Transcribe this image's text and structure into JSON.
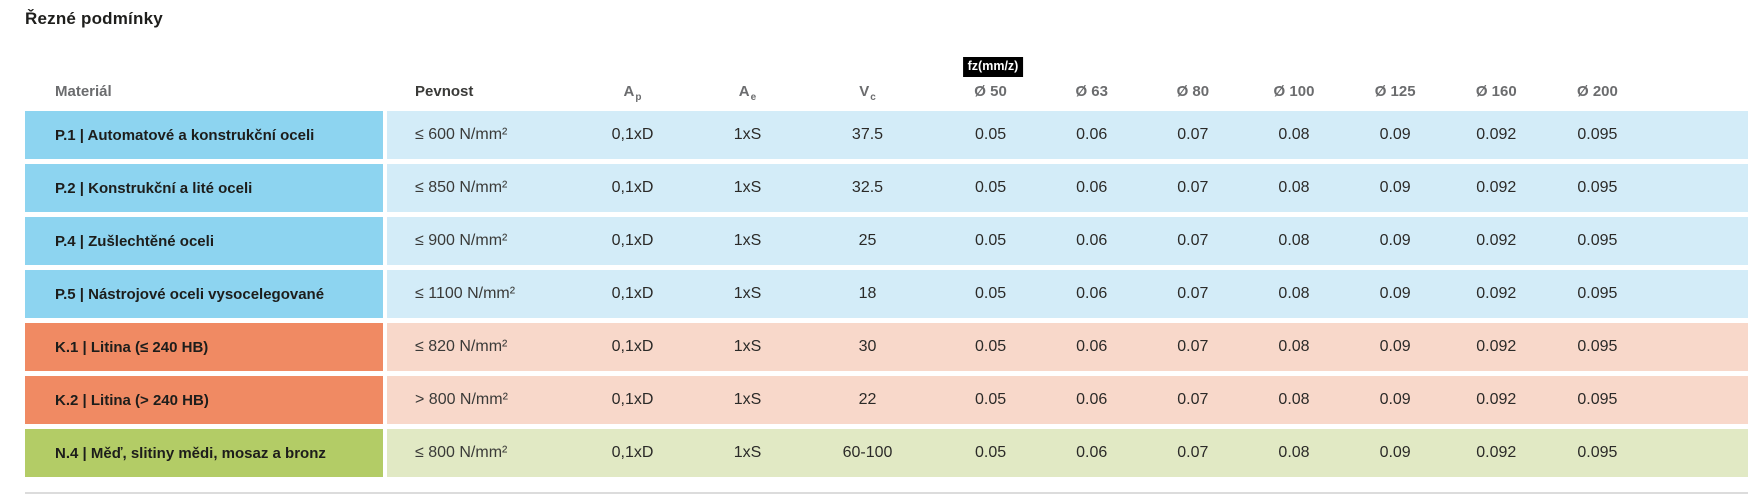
{
  "title": "Řezné podmínky",
  "colors": {
    "steel_strong": "#8dd4f0",
    "steel_light": "#d3ecf8",
    "cast_strong": "#f08a63",
    "cast_light": "#f8d8ca",
    "nonferrous_strong": "#b3cc66",
    "nonferrous_light": "#e1e9c4",
    "header_text": "#6b6c6e",
    "dark_text": "#1e1e1c",
    "badge_bg": "#000000",
    "badge_text": "#ffffff"
  },
  "table": {
    "fz_badge": "fz(mm/z)",
    "headers": {
      "material": "Materiál",
      "pevnost": "Pevnost",
      "ap_base": "A",
      "ap_sub": "p",
      "ae_base": "A",
      "ae_sub": "e",
      "vc_base": "V",
      "vc_sub": "c",
      "d50": "Ø 50",
      "d63": "Ø 63",
      "d80": "Ø 80",
      "d100": "Ø 100",
      "d125": "Ø 125",
      "d160": "Ø 160",
      "d200": "Ø 200"
    },
    "rows": [
      {
        "group": "steel",
        "material": "P.1 | Automatové a konstrukční oceli",
        "pevnost": "≤ 600 N/mm²",
        "ap": "0,1xD",
        "ae": "1xS",
        "vc": "37.5",
        "fz50": "0.05",
        "fz63": "0.06",
        "fz80": "0.07",
        "fz100": "0.08",
        "fz125": "0.09",
        "fz160": "0.092",
        "fz200": "0.095"
      },
      {
        "group": "steel",
        "material": "P.2 | Konstrukční a lité oceli",
        "pevnost": "≤ 850 N/mm²",
        "ap": "0,1xD",
        "ae": "1xS",
        "vc": "32.5",
        "fz50": "0.05",
        "fz63": "0.06",
        "fz80": "0.07",
        "fz100": "0.08",
        "fz125": "0.09",
        "fz160": "0.092",
        "fz200": "0.095"
      },
      {
        "group": "steel",
        "material": "P.4 | Zušlechtěné oceli",
        "pevnost": "≤ 900 N/mm²",
        "ap": "0,1xD",
        "ae": "1xS",
        "vc": "25",
        "fz50": "0.05",
        "fz63": "0.06",
        "fz80": "0.07",
        "fz100": "0.08",
        "fz125": "0.09",
        "fz160": "0.092",
        "fz200": "0.095"
      },
      {
        "group": "steel",
        "material": "P.5 | Nástrojové oceli vysocelegované",
        "pevnost": "≤ 1100 N/mm²",
        "ap": "0,1xD",
        "ae": "1xS",
        "vc": "18",
        "fz50": "0.05",
        "fz63": "0.06",
        "fz80": "0.07",
        "fz100": "0.08",
        "fz125": "0.09",
        "fz160": "0.092",
        "fz200": "0.095"
      },
      {
        "group": "cast",
        "material": "K.1 | Litina (≤ 240 HB)",
        "pevnost": "≤ 820 N/mm²",
        "ap": "0,1xD",
        "ae": "1xS",
        "vc": "30",
        "fz50": "0.05",
        "fz63": "0.06",
        "fz80": "0.07",
        "fz100": "0.08",
        "fz125": "0.09",
        "fz160": "0.092",
        "fz200": "0.095"
      },
      {
        "group": "cast",
        "material": "K.2 | Litina (> 240 HB)",
        "pevnost": "> 800 N/mm²",
        "ap": "0,1xD",
        "ae": "1xS",
        "vc": "22",
        "fz50": "0.05",
        "fz63": "0.06",
        "fz80": "0.07",
        "fz100": "0.08",
        "fz125": "0.09",
        "fz160": "0.092",
        "fz200": "0.095"
      },
      {
        "group": "nonferrous",
        "material": "N.4 | Měď, slitiny mědi, mosaz a bronz",
        "pevnost": "≤ 800 N/mm²",
        "ap": "0,1xD",
        "ae": "1xS",
        "vc": "60-100",
        "fz50": "0.05",
        "fz63": "0.06",
        "fz80": "0.07",
        "fz100": "0.08",
        "fz125": "0.09",
        "fz160": "0.092",
        "fz200": "0.095"
      }
    ]
  }
}
